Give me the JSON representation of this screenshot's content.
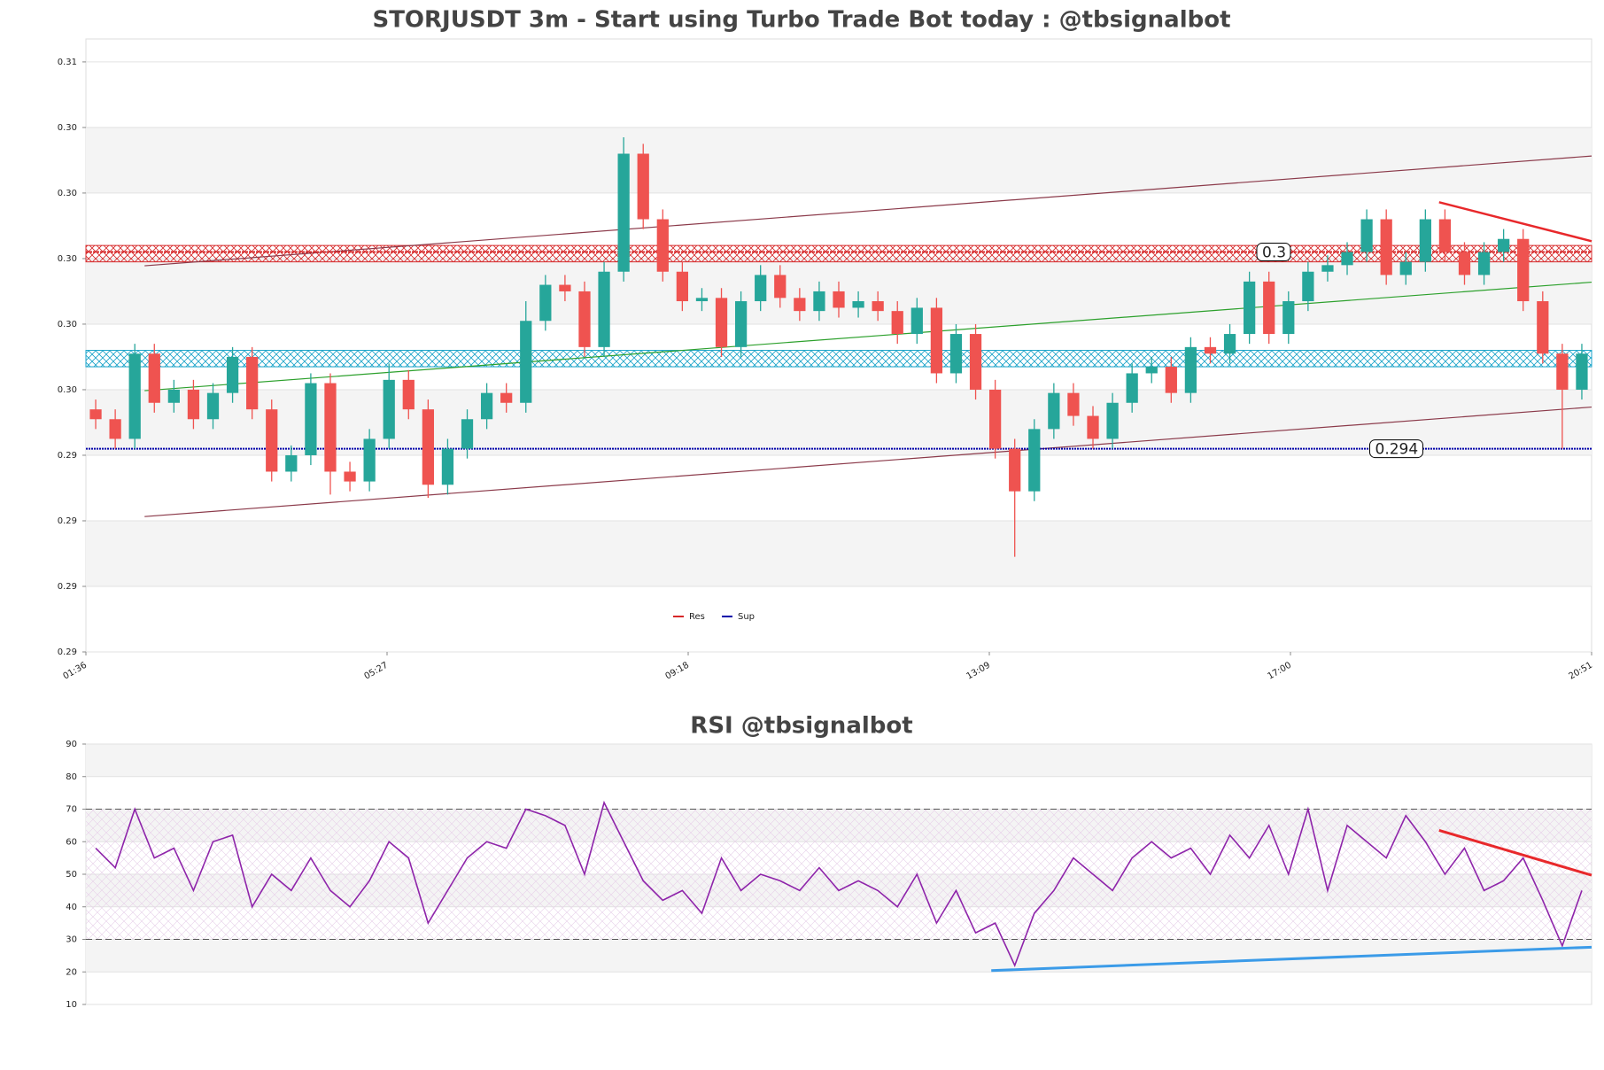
{
  "chart_data": [
    {
      "type": "candlestick",
      "title": "STORJUSDT 3m - Start using Turbo Trade Bot today : @tbsignalbot",
      "up_color": "#26a69a",
      "down_color": "#ef5350",
      "open": [
        0.2952,
        0.2949,
        0.2943,
        0.2969,
        0.2954,
        0.2958,
        0.2949,
        0.2957,
        0.2968,
        0.2952,
        0.2933,
        0.2938,
        0.296,
        0.2933,
        0.293,
        0.2943,
        0.2961,
        0.2952,
        0.2929,
        0.294,
        0.2949,
        0.2957,
        0.2954,
        0.2979,
        0.299,
        0.2988,
        0.2971,
        0.2994,
        0.303,
        0.301,
        0.2994,
        0.2985,
        0.2986,
        0.2971,
        0.2985,
        0.2993,
        0.2986,
        0.2982,
        0.2988,
        0.2983,
        0.2985,
        0.2982,
        0.2975,
        0.2983,
        0.2963,
        0.2975,
        0.2958,
        0.294,
        0.2927,
        0.2946,
        0.2957,
        0.295,
        0.2943,
        0.2954,
        0.2963,
        0.2965,
        0.2957,
        0.2971,
        0.2969,
        0.2975,
        0.2991,
        0.2975,
        0.2985,
        0.2994,
        0.2996,
        0.3,
        0.301,
        0.2993,
        0.2997,
        0.301,
        0.3,
        0.2993,
        0.3,
        0.3004,
        0.2985,
        0.2969,
        0.2958
      ],
      "high": [
        0.2955,
        0.2952,
        0.2972,
        0.2972,
        0.2961,
        0.2961,
        0.296,
        0.2971,
        0.2971,
        0.2955,
        0.2941,
        0.2963,
        0.2963,
        0.2936,
        0.2946,
        0.2966,
        0.2964,
        0.2955,
        0.2943,
        0.2952,
        0.296,
        0.296,
        0.2985,
        0.2993,
        0.2993,
        0.2991,
        0.2997,
        0.3035,
        0.3033,
        0.3013,
        0.2997,
        0.2989,
        0.2989,
        0.2988,
        0.2996,
        0.2996,
        0.2989,
        0.2991,
        0.2991,
        0.2988,
        0.2988,
        0.2985,
        0.2986,
        0.2986,
        0.2978,
        0.2978,
        0.2961,
        0.2943,
        0.2949,
        0.296,
        0.296,
        0.2953,
        0.2957,
        0.2966,
        0.2968,
        0.2968,
        0.2974,
        0.2974,
        0.2978,
        0.2994,
        0.2994,
        0.2988,
        0.2997,
        0.2999,
        0.3003,
        0.3013,
        0.3013,
        0.3,
        0.3013,
        0.3013,
        0.3003,
        0.3003,
        0.3007,
        0.3007,
        0.2988,
        0.2972,
        0.2972
      ],
      "low": [
        0.2946,
        0.294,
        0.294,
        0.2951,
        0.2951,
        0.2946,
        0.2946,
        0.2954,
        0.2949,
        0.293,
        0.293,
        0.2935,
        0.2926,
        0.2927,
        0.2927,
        0.294,
        0.2949,
        0.2925,
        0.2926,
        0.2937,
        0.2946,
        0.2951,
        0.2951,
        0.2976,
        0.2985,
        0.2968,
        0.2968,
        0.2991,
        0.3007,
        0.2991,
        0.2982,
        0.2982,
        0.2968,
        0.2968,
        0.2982,
        0.2983,
        0.2979,
        0.2979,
        0.298,
        0.298,
        0.2979,
        0.2972,
        0.2972,
        0.296,
        0.296,
        0.2955,
        0.2937,
        0.2907,
        0.2924,
        0.2943,
        0.2947,
        0.294,
        0.294,
        0.2951,
        0.296,
        0.2954,
        0.2954,
        0.2966,
        0.2966,
        0.2972,
        0.2972,
        0.2972,
        0.2982,
        0.2991,
        0.2993,
        0.2997,
        0.299,
        0.299,
        0.2994,
        0.2997,
        0.299,
        0.299,
        0.2997,
        0.2982,
        0.2966,
        0.294,
        0.2955
      ],
      "close": [
        0.2949,
        0.2943,
        0.2969,
        0.2954,
        0.2958,
        0.2949,
        0.2957,
        0.2968,
        0.2952,
        0.2933,
        0.2938,
        0.296,
        0.2933,
        0.293,
        0.2943,
        0.2961,
        0.2952,
        0.2929,
        0.294,
        0.2949,
        0.2957,
        0.2954,
        0.2979,
        0.299,
        0.2988,
        0.2971,
        0.2994,
        0.303,
        0.301,
        0.2994,
        0.2985,
        0.2986,
        0.2971,
        0.2985,
        0.2993,
        0.2986,
        0.2982,
        0.2988,
        0.2983,
        0.2985,
        0.2982,
        0.2975,
        0.2983,
        0.2963,
        0.2975,
        0.2958,
        0.294,
        0.2927,
        0.2946,
        0.2957,
        0.295,
        0.2943,
        0.2954,
        0.2963,
        0.2965,
        0.2957,
        0.2971,
        0.2969,
        0.2975,
        0.2991,
        0.2975,
        0.2985,
        0.2994,
        0.2996,
        0.3,
        0.301,
        0.2993,
        0.2997,
        0.301,
        0.3,
        0.2993,
        0.3,
        0.3004,
        0.2985,
        0.2969,
        0.2958,
        0.2969
      ],
      "xlim": [
        0,
        77
      ],
      "xticks": [
        {
          "value": 0,
          "label": "01:36"
        },
        {
          "value": 15.4,
          "label": "05:27"
        },
        {
          "value": 30.8,
          "label": "09:18"
        },
        {
          "value": 46.2,
          "label": "13:09"
        },
        {
          "value": 61.6,
          "label": "17:00"
        },
        {
          "value": 77,
          "label": "20:51"
        }
      ],
      "ylim": [
        0.2878,
        0.3065
      ],
      "yticks": [
        {
          "value": 0.2878,
          "label": "0.29"
        },
        {
          "value": 0.2898,
          "label": "0.29"
        },
        {
          "value": 0.2918,
          "label": "0.29"
        },
        {
          "value": 0.2938,
          "label": "0.29"
        },
        {
          "value": 0.2958,
          "label": "0.30"
        },
        {
          "value": 0.2978,
          "label": "0.30"
        },
        {
          "value": 0.2998,
          "label": "0.30"
        },
        {
          "value": 0.3018,
          "label": "0.30"
        },
        {
          "value": 0.3038,
          "label": "0.30"
        },
        {
          "value": 0.3058,
          "label": "0.31"
        }
      ],
      "series": [
        {
          "name": "Res",
          "color": "#d62728",
          "value": 0.3
        },
        {
          "name": "Sup",
          "color": "#0000aa",
          "value": 0.294
        }
      ],
      "zones": [
        {
          "low": 0.2997,
          "high": 0.3002,
          "color": "red"
        },
        {
          "low": 0.2965,
          "high": 0.297,
          "color": "blue"
        }
      ],
      "trendlines": [
        {
          "color": "#8b3a4a",
          "x": [
            3,
            77
          ],
          "y": [
            0.29958,
            0.30293
          ]
        },
        {
          "color": "#8b3a4a",
          "x": [
            3,
            77
          ],
          "y": [
            0.29193,
            0.29527
          ]
        },
        {
          "color": "#2ca02c",
          "x": [
            3,
            77
          ],
          "y": [
            0.29577,
            0.29908
          ]
        },
        {
          "color": "#e8282b",
          "x": [
            69.2,
            77
          ],
          "y": [
            0.30152,
            0.30033
          ]
        }
      ]
    },
    {
      "type": "line",
      "title": "RSI @tbsignalbot",
      "color": "#8e24aa",
      "values": [
        58,
        52,
        70,
        55,
        58,
        45,
        60,
        62,
        40,
        50,
        45,
        55,
        45,
        40,
        48,
        60,
        55,
        35,
        45,
        55,
        60,
        58,
        70,
        68,
        65,
        50,
        72,
        60,
        48,
        42,
        45,
        38,
        55,
        45,
        50,
        48,
        45,
        52,
        45,
        48,
        45,
        40,
        50,
        35,
        45,
        32,
        35,
        22,
        38,
        45,
        55,
        50,
        45,
        55,
        60,
        55,
        58,
        50,
        62,
        55,
        65,
        50,
        70,
        45,
        65,
        60,
        55,
        68,
        60,
        50,
        58,
        45,
        48,
        55,
        42,
        28,
        45
      ],
      "xlim": [
        0,
        77
      ],
      "ylim": [
        10,
        90
      ],
      "yticks": [
        10,
        20,
        30,
        40,
        50,
        60,
        70,
        80,
        90
      ],
      "bands": [
        30,
        70
      ],
      "trendlines": [
        {
          "color": "#e8282b",
          "x": [
            69.2,
            77
          ],
          "y": [
            63.5,
            49.7
          ]
        },
        {
          "color": "#3b9be8",
          "x": [
            46.3,
            77
          ],
          "y": [
            20.4,
            27.6
          ]
        }
      ]
    }
  ]
}
